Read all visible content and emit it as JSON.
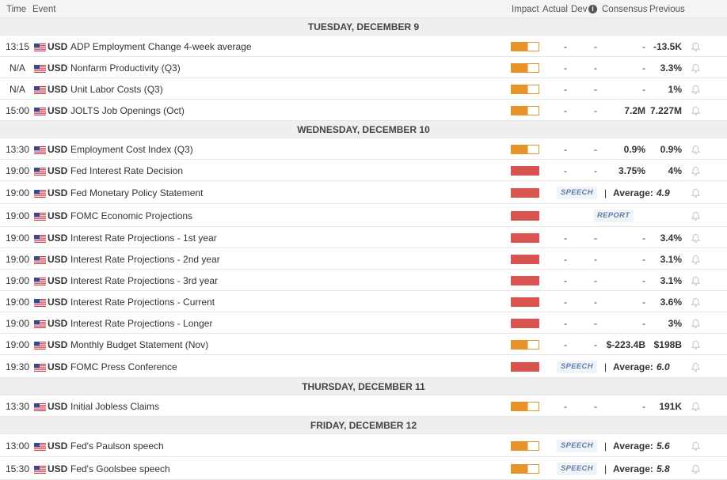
{
  "header": {
    "time": "Time",
    "event": "Event",
    "impact": "Impact",
    "actual": "Actual",
    "dev": "Dev",
    "consensus": "Consensus",
    "previous": "Previous"
  },
  "days": [
    {
      "label": "TUESDAY, DECEMBER 9",
      "events": [
        {
          "time": "13:15",
          "currency": "USD",
          "name": "ADP Employment Change 4-week average",
          "impact": "medium",
          "actual": "-",
          "dev": "-",
          "consensus": "-",
          "previous": "-13.5K"
        },
        {
          "time": "N/A",
          "currency": "USD",
          "name": "Nonfarm Productivity (Q3)",
          "impact": "medium",
          "actual": "-",
          "dev": "-",
          "consensus": "-",
          "previous": "3.3%"
        },
        {
          "time": "N/A",
          "currency": "USD",
          "name": "Unit Labor Costs (Q3)",
          "impact": "medium",
          "actual": "-",
          "dev": "-",
          "consensus": "-",
          "previous": "1%"
        },
        {
          "time": "15:00",
          "currency": "USD",
          "name": "JOLTS Job Openings (Oct)",
          "impact": "medium",
          "actual": "-",
          "dev": "-",
          "consensus": "7.2M",
          "previous": "7.227M"
        }
      ]
    },
    {
      "label": "WEDNESDAY, DECEMBER 10",
      "events": [
        {
          "time": "13:30",
          "currency": "USD",
          "name": "Employment Cost Index (Q3)",
          "impact": "medium",
          "actual": "-",
          "dev": "-",
          "consensus": "0.9%",
          "previous": "0.9%"
        },
        {
          "time": "19:00",
          "currency": "USD",
          "name": "Fed Interest Rate Decision",
          "impact": "high",
          "actual": "-",
          "dev": "-",
          "consensus": "3.75%",
          "previous": "4%"
        },
        {
          "time": "19:00",
          "currency": "USD",
          "name": "Fed Monetary Policy Statement",
          "impact": "high",
          "tag": "SPEECH",
          "average_label": "Average:",
          "average": "4.9"
        },
        {
          "time": "19:00",
          "currency": "USD",
          "name": "FOMC Economic Projections",
          "impact": "high",
          "tag": "REPORT"
        },
        {
          "time": "19:00",
          "currency": "USD",
          "name": "Interest Rate Projections - 1st year",
          "impact": "high",
          "actual": "-",
          "dev": "-",
          "consensus": "-",
          "previous": "3.4%"
        },
        {
          "time": "19:00",
          "currency": "USD",
          "name": "Interest Rate Projections - 2nd year",
          "impact": "high",
          "actual": "-",
          "dev": "-",
          "consensus": "-",
          "previous": "3.1%"
        },
        {
          "time": "19:00",
          "currency": "USD",
          "name": "Interest Rate Projections - 3rd year",
          "impact": "high",
          "actual": "-",
          "dev": "-",
          "consensus": "-",
          "previous": "3.1%"
        },
        {
          "time": "19:00",
          "currency": "USD",
          "name": "Interest Rate Projections - Current",
          "impact": "high",
          "actual": "-",
          "dev": "-",
          "consensus": "-",
          "previous": "3.6%"
        },
        {
          "time": "19:00",
          "currency": "USD",
          "name": "Interest Rate Projections - Longer",
          "impact": "high",
          "actual": "-",
          "dev": "-",
          "consensus": "-",
          "previous": "3%"
        },
        {
          "time": "19:00",
          "currency": "USD",
          "name": "Monthly Budget Statement (Nov)",
          "impact": "medium",
          "actual": "-",
          "dev": "-",
          "consensus": "$-223.4B",
          "previous": "$198B"
        },
        {
          "time": "19:30",
          "currency": "USD",
          "name": "FOMC Press Conference",
          "impact": "high",
          "tag": "SPEECH",
          "average_label": "Average:",
          "average": "6.0"
        }
      ]
    },
    {
      "label": "THURSDAY, DECEMBER 11",
      "events": [
        {
          "time": "13:30",
          "currency": "USD",
          "name": "Initial Jobless Claims",
          "impact": "medium",
          "actual": "-",
          "dev": "-",
          "consensus": "-",
          "previous": "191K"
        }
      ]
    },
    {
      "label": "FRIDAY, DECEMBER 12",
      "events": [
        {
          "time": "13:00",
          "currency": "USD",
          "name": "Fed's Paulson speech",
          "impact": "medium",
          "tag": "SPEECH",
          "average_label": "Average:",
          "average": "5.6"
        },
        {
          "time": "15:30",
          "currency": "USD",
          "name": "Fed's Goolsbee speech",
          "impact": "medium",
          "tag": "SPEECH",
          "average_label": "Average:",
          "average": "5.8"
        }
      ]
    }
  ]
}
